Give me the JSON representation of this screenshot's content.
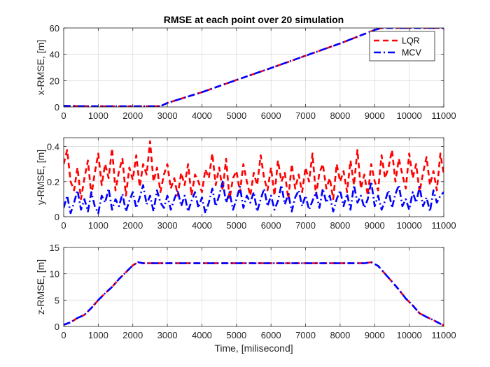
{
  "chart_data": [
    {
      "type": "line",
      "title": "RMSE at each point over 20 simulation",
      "xlabel": "",
      "ylabel": "x-RMSE, [m]",
      "xlim": [
        0,
        11000
      ],
      "ylim": [
        0,
        60
      ],
      "xticks": [
        0,
        1000,
        2000,
        3000,
        4000,
        5000,
        6000,
        7000,
        8000,
        9000,
        10000,
        11000
      ],
      "yticks": [
        0,
        20,
        40,
        60
      ],
      "grid": true,
      "legend_position": "top-right",
      "series": [
        {
          "name": "LQR",
          "color": "#ff0000",
          "style": "dashed",
          "x": [
            0,
            1000,
            2000,
            2800,
            3000,
            4000,
            5000,
            6000,
            7000,
            8000,
            9000,
            9200,
            10000,
            11000
          ],
          "y": [
            0.8,
            0.5,
            0.5,
            0.6,
            3,
            11.2,
            20.5,
            29.6,
            38.9,
            48.2,
            58.5,
            60,
            60,
            60
          ]
        },
        {
          "name": "MCV",
          "color": "#0000ff",
          "style": "dashdot",
          "x": [
            0,
            1000,
            2000,
            2800,
            3000,
            4000,
            5000,
            6000,
            7000,
            8000,
            9000,
            9200,
            10000,
            11000
          ],
          "y": [
            0.8,
            0.5,
            0.5,
            0.6,
            3,
            11.2,
            20.5,
            29.6,
            38.9,
            48.2,
            58.5,
            60,
            60,
            60
          ]
        }
      ]
    },
    {
      "type": "line",
      "title": "",
      "xlabel": "",
      "ylabel": "y-RMSE, [m]",
      "xlim": [
        0,
        11000
      ],
      "ylim": [
        0,
        0.45
      ],
      "xticks": [
        0,
        1000,
        2000,
        3000,
        4000,
        5000,
        6000,
        7000,
        8000,
        9000,
        10000,
        11000
      ],
      "yticks": [
        0,
        0.2,
        0.4
      ],
      "grid": true,
      "series": [
        {
          "color": "#ff0000",
          "style": "dashed",
          "x": [
            0,
            100,
            200,
            300,
            400,
            500,
            600,
            700,
            800,
            900,
            1000,
            1100,
            1200,
            1300,
            1400,
            1500,
            1600,
            1700,
            1800,
            1900,
            2000,
            2100,
            2200,
            2300,
            2400,
            2500,
            2600,
            2700,
            2800,
            2900,
            3000,
            3100,
            3200,
            3300,
            3400,
            3500,
            3600,
            3700,
            3800,
            3900,
            4000,
            4100,
            4200,
            4300,
            4400,
            4500,
            4600,
            4700,
            4800,
            4900,
            5000,
            5100,
            5200,
            5300,
            5400,
            5500,
            5600,
            5700,
            5800,
            5900,
            6000,
            6100,
            6200,
            6300,
            6400,
            6500,
            6600,
            6700,
            6800,
            6900,
            7000,
            7100,
            7200,
            7300,
            7400,
            7500,
            7600,
            7700,
            7800,
            7900,
            8000,
            8100,
            8200,
            8300,
            8400,
            8500,
            8600,
            8700,
            8800,
            8900,
            9000,
            9100,
            9200,
            9300,
            9400,
            9500,
            9600,
            9700,
            9800,
            9900,
            10000,
            10100,
            10200,
            10300,
            10400,
            10500,
            10600,
            10700,
            10800,
            10900,
            11000
          ],
          "y": [
            0.3,
            0.38,
            0.2,
            0.15,
            0.28,
            0.1,
            0.22,
            0.32,
            0.12,
            0.25,
            0.36,
            0.18,
            0.3,
            0.22,
            0.39,
            0.15,
            0.26,
            0.33,
            0.12,
            0.28,
            0.21,
            0.35,
            0.17,
            0.3,
            0.24,
            0.43,
            0.2,
            0.28,
            0.14,
            0.24,
            0.3,
            0.16,
            0.22,
            0.12,
            0.25,
            0.18,
            0.3,
            0.12,
            0.24,
            0.2,
            0.14,
            0.27,
            0.22,
            0.36,
            0.18,
            0.28,
            0.15,
            0.33,
            0.1,
            0.22,
            0.26,
            0.14,
            0.3,
            0.2,
            0.12,
            0.25,
            0.18,
            0.35,
            0.22,
            0.15,
            0.28,
            0.12,
            0.32,
            0.2,
            0.25,
            0.1,
            0.3,
            0.16,
            0.24,
            0.14,
            0.28,
            0.2,
            0.36,
            0.12,
            0.25,
            0.3,
            0.16,
            0.22,
            0.1,
            0.3,
            0.2,
            0.26,
            0.14,
            0.32,
            0.18,
            0.38,
            0.16,
            0.24,
            0.12,
            0.3,
            0.2,
            0.15,
            0.35,
            0.22,
            0.28,
            0.38,
            0.2,
            0.33,
            0.24,
            0.16,
            0.36,
            0.22,
            0.3,
            0.14,
            0.25,
            0.34,
            0.18,
            0.26,
            0.15,
            0.36,
            0.24
          ]
        },
        {
          "color": "#0000ff",
          "style": "dashdot",
          "x": [
            0,
            100,
            200,
            300,
            400,
            500,
            600,
            700,
            800,
            900,
            1000,
            1100,
            1200,
            1300,
            1400,
            1500,
            1600,
            1700,
            1800,
            1900,
            2000,
            2100,
            2200,
            2300,
            2400,
            2500,
            2600,
            2700,
            2800,
            2900,
            3000,
            3100,
            3200,
            3300,
            3400,
            3500,
            3600,
            3700,
            3800,
            3900,
            4000,
            4100,
            4200,
            4300,
            4400,
            4500,
            4600,
            4700,
            4800,
            4900,
            5000,
            5100,
            5200,
            5300,
            5400,
            5500,
            5600,
            5700,
            5800,
            5900,
            6000,
            6100,
            6200,
            6300,
            6400,
            6500,
            6600,
            6700,
            6800,
            6900,
            7000,
            7100,
            7200,
            7300,
            7400,
            7500,
            7600,
            7700,
            7800,
            7900,
            8000,
            8100,
            8200,
            8300,
            8400,
            8500,
            8600,
            8700,
            8800,
            8900,
            9000,
            9100,
            9200,
            9300,
            9400,
            9500,
            9600,
            9700,
            9800,
            9900,
            10000,
            10100,
            10200,
            10300,
            10400,
            10500,
            10600,
            10700,
            10800,
            10900,
            11000
          ],
          "y": [
            0.05,
            0.12,
            0.02,
            0.08,
            0.15,
            0.04,
            0.1,
            0.03,
            0.14,
            0.06,
            0.02,
            0.12,
            0.08,
            0.16,
            0.04,
            0.1,
            0.06,
            0.13,
            0.03,
            0.09,
            0.14,
            0.05,
            0.11,
            0.18,
            0.07,
            0.12,
            0.03,
            0.15,
            0.08,
            0.05,
            0.12,
            0.04,
            0.1,
            0.15,
            0.06,
            0.12,
            0.03,
            0.09,
            0.14,
            0.05,
            0.11,
            0.02,
            0.08,
            0.16,
            0.06,
            0.12,
            0.2,
            0.08,
            0.14,
            0.04,
            0.1,
            0.17,
            0.05,
            0.12,
            0.08,
            0.14,
            0.03,
            0.1,
            0.16,
            0.06,
            0.12,
            0.04,
            0.09,
            0.18,
            0.07,
            0.13,
            0.03,
            0.11,
            0.15,
            0.06,
            0.12,
            0.04,
            0.09,
            0.14,
            0.05,
            0.16,
            0.08,
            0.12,
            0.03,
            0.1,
            0.15,
            0.06,
            0.13,
            0.04,
            0.18,
            0.08,
            0.12,
            0.05,
            0.1,
            0.2,
            0.06,
            0.12,
            0.04,
            0.09,
            0.15,
            0.05,
            0.13,
            0.18,
            0.06,
            0.1,
            0.04,
            0.14,
            0.08,
            0.17,
            0.06,
            0.11,
            0.03,
            0.15,
            0.08,
            0.12,
            0.14
          ]
        }
      ]
    },
    {
      "type": "line",
      "title": "",
      "xlabel": "Time, [milisecond]",
      "ylabel": "z-RMSE, [m]",
      "xlim": [
        0,
        11000
      ],
      "ylim": [
        0,
        15
      ],
      "xticks": [
        0,
        1000,
        2000,
        3000,
        4000,
        5000,
        6000,
        7000,
        8000,
        9000,
        10000,
        11000
      ],
      "yticks": [
        0,
        5,
        10,
        15
      ],
      "grid": true,
      "series": [
        {
          "color": "#ff0000",
          "style": "dashed",
          "x": [
            0,
            200,
            400,
            600,
            800,
            1000,
            1200,
            1400,
            1600,
            1800,
            2000,
            2150,
            2300,
            3000,
            4000,
            5000,
            6000,
            7000,
            8000,
            8700,
            8900,
            9100,
            9300,
            9500,
            9700,
            9900,
            10100,
            10300,
            10500,
            10700,
            10900,
            11000
          ],
          "y": [
            0.3,
            0.8,
            1.6,
            2.2,
            3.5,
            5.0,
            6.3,
            7.5,
            9.0,
            10.3,
            11.6,
            12.2,
            12.0,
            12.0,
            12.0,
            12.0,
            12.0,
            12.0,
            12.0,
            12.0,
            12.2,
            11.5,
            10.0,
            8.5,
            7.0,
            5.3,
            4.0,
            2.5,
            1.8,
            1.2,
            0.5,
            0.2
          ]
        },
        {
          "color": "#0000ff",
          "style": "dashdot",
          "x": [
            0,
            200,
            400,
            600,
            800,
            1000,
            1200,
            1400,
            1600,
            1800,
            2000,
            2150,
            2300,
            3000,
            4000,
            5000,
            6000,
            7000,
            8000,
            8700,
            8900,
            9100,
            9300,
            9500,
            9700,
            9900,
            10100,
            10300,
            10500,
            10700,
            10900,
            11000
          ],
          "y": [
            0.3,
            0.8,
            1.6,
            2.2,
            3.5,
            5.0,
            6.3,
            7.5,
            9.0,
            10.3,
            11.6,
            12.2,
            12.0,
            12.0,
            12.0,
            12.0,
            12.0,
            12.0,
            12.0,
            12.0,
            12.2,
            11.5,
            10.0,
            8.5,
            7.0,
            5.3,
            4.0,
            2.5,
            1.8,
            1.2,
            0.5,
            0.2
          ]
        }
      ]
    }
  ]
}
